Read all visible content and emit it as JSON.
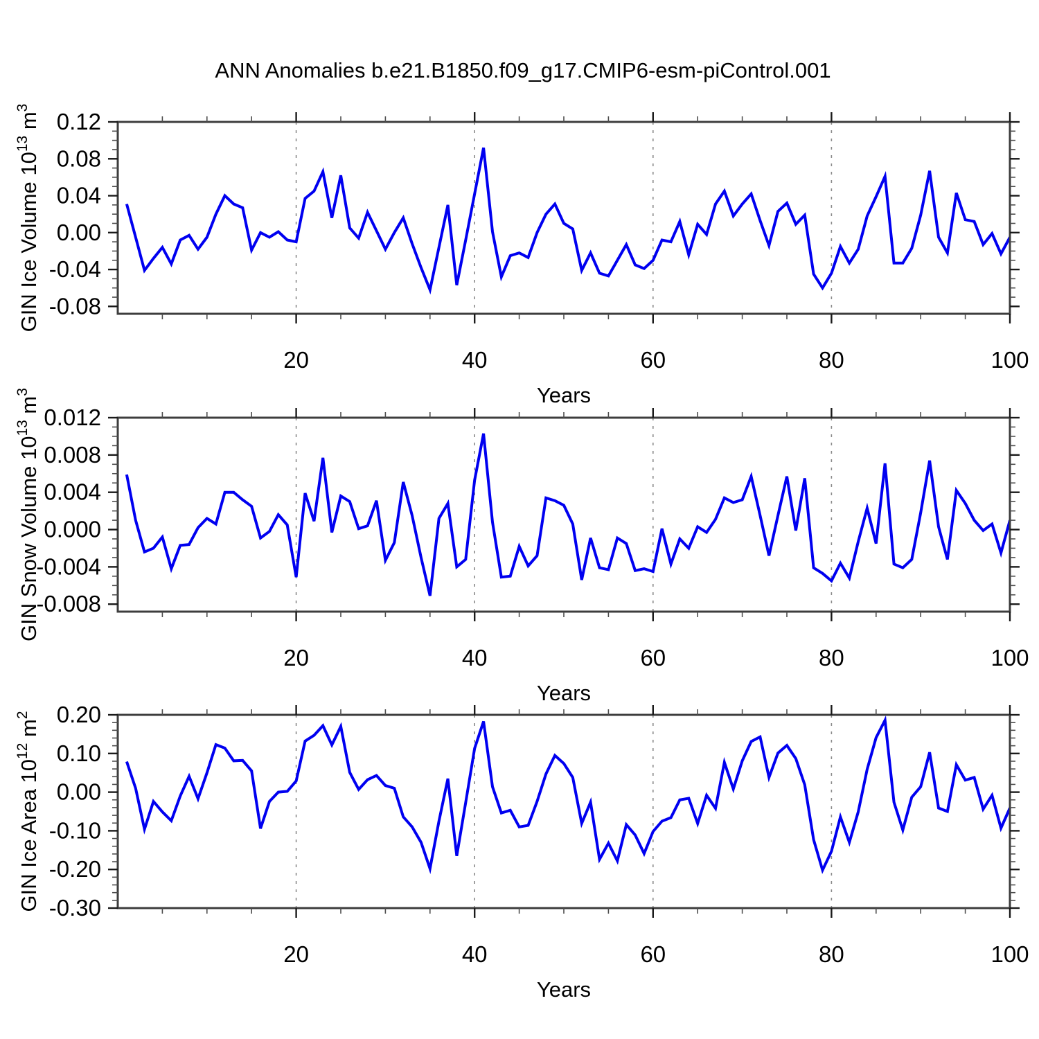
{
  "title": "ANN Anomalies b.e21.B1850.f09_g17.CMIP6-esm-piControl.001",
  "chart_data": [
    {
      "type": "line",
      "name": "gin-ice-volume",
      "ylabel_parts": [
        [
          "GIN Ice Volume 10",
          false
        ],
        [
          "13",
          true
        ],
        [
          " m",
          false
        ],
        [
          "3",
          true
        ]
      ],
      "xlabel": "Years",
      "x_axis_min": 0,
      "x_axis_max": 100,
      "x_data_start": 1,
      "xticks": [
        20,
        40,
        60,
        80,
        100
      ],
      "xtick_labels": [
        "20",
        "40",
        "60",
        "80",
        "100"
      ],
      "x_minor_step": 5,
      "gridlines_x": [
        20,
        40,
        60,
        80
      ],
      "ymin": -0.088,
      "ymax": 0.12,
      "yticks": [
        {
          "v": 0.12,
          "label": "0.12"
        },
        {
          "v": 0.08,
          "label": "0.08"
        },
        {
          "v": 0.04,
          "label": "0.04"
        },
        {
          "v": 0.0,
          "label": "0.00"
        },
        {
          "v": -0.04,
          "label": "-0.04"
        },
        {
          "v": -0.08,
          "label": "-0.08"
        }
      ],
      "y_minor_step": 0.01,
      "line_color": "#0000f0",
      "grid_color": "#8a8a8a",
      "values": [
        0.031,
        -0.005,
        -0.041,
        -0.028,
        -0.016,
        -0.034,
        -0.008,
        -0.003,
        -0.018,
        -0.005,
        0.02,
        0.04,
        0.031,
        0.027,
        -0.019,
        0.0,
        -0.005,
        0.001,
        -0.008,
        -0.01,
        0.037,
        0.045,
        0.066,
        0.016,
        0.062,
        0.005,
        -0.006,
        0.022,
        0.002,
        -0.018,
        0.0,
        0.016,
        -0.012,
        -0.038,
        -0.062,
        -0.016,
        0.03,
        -0.057,
        -0.008,
        0.042,
        0.092,
        0.001,
        -0.048,
        -0.025,
        -0.022,
        -0.027,
        0.0,
        0.02,
        0.031,
        0.01,
        0.004,
        -0.041,
        -0.022,
        -0.044,
        -0.047,
        -0.03,
        -0.013,
        -0.035,
        -0.039,
        -0.03,
        -0.008,
        -0.01,
        0.012,
        -0.024,
        0.009,
        -0.002,
        0.031,
        0.045,
        0.018,
        0.031,
        0.042,
        0.013,
        -0.014,
        0.023,
        0.032,
        0.009,
        0.019,
        -0.045,
        -0.06,
        -0.044,
        -0.015,
        -0.033,
        -0.018,
        0.018,
        0.039,
        0.061,
        -0.033,
        -0.033,
        -0.017,
        0.019,
        0.067,
        -0.005,
        -0.022,
        0.043,
        0.014,
        0.012,
        -0.013,
        -0.001,
        -0.023,
        -0.005
      ]
    },
    {
      "type": "line",
      "name": "gin-snow-volume",
      "ylabel_parts": [
        [
          "GIN Snow Volume 10",
          false
        ],
        [
          "13",
          true
        ],
        [
          " m",
          false
        ],
        [
          "3",
          true
        ]
      ],
      "xlabel": "Years",
      "x_axis_min": 0,
      "x_axis_max": 100,
      "x_data_start": 1,
      "xticks": [
        20,
        40,
        60,
        80,
        100
      ],
      "xtick_labels": [
        "20",
        "40",
        "60",
        "80",
        "100"
      ],
      "x_minor_step": 5,
      "gridlines_x": [
        20,
        40,
        60,
        80
      ],
      "ymin": -0.0088,
      "ymax": 0.012,
      "yticks": [
        {
          "v": 0.012,
          "label": "0.012"
        },
        {
          "v": 0.008,
          "label": "0.008"
        },
        {
          "v": 0.004,
          "label": "0.004"
        },
        {
          "v": 0.0,
          "label": "0.000"
        },
        {
          "v": -0.004,
          "label": "-0.004"
        },
        {
          "v": -0.008,
          "label": "-0.008"
        }
      ],
      "y_minor_step": 0.001,
      "line_color": "#0000f0",
      "grid_color": "#8a8a8a",
      "values": [
        0.0059,
        0.001,
        -0.0024,
        -0.002,
        -0.0008,
        -0.0042,
        -0.0017,
        -0.0016,
        0.0002,
        0.0012,
        0.0006,
        0.004,
        0.004,
        0.0032,
        0.0025,
        -0.0009,
        -0.0002,
        0.0016,
        0.0005,
        -0.0051,
        0.0039,
        0.0009,
        0.0077,
        -0.0003,
        0.0036,
        0.003,
        0.0001,
        0.0004,
        0.0031,
        -0.0033,
        -0.0014,
        0.0051,
        0.0015,
        -0.003,
        -0.0071,
        0.0012,
        0.0028,
        -0.004,
        -0.0032,
        0.0053,
        0.0103,
        0.0008,
        -0.0051,
        -0.005,
        -0.0018,
        -0.0039,
        -0.0028,
        0.0034,
        0.0031,
        0.0026,
        0.0006,
        -0.0054,
        -0.0009,
        -0.0041,
        -0.0043,
        -0.0009,
        -0.0015,
        -0.0044,
        -0.0042,
        -0.0045,
        0.0001,
        -0.0037,
        -0.001,
        -0.002,
        0.0003,
        -0.0003,
        0.0011,
        0.0034,
        0.0029,
        0.0032,
        0.0057,
        0.0015,
        -0.0028,
        0.0015,
        0.0057,
        -0.0001,
        0.0055,
        -0.0041,
        -0.0047,
        -0.0055,
        -0.0036,
        -0.0052,
        -0.0013,
        0.0023,
        -0.0015,
        0.0071,
        -0.0037,
        -0.0041,
        -0.0032,
        0.0018,
        0.0074,
        0.0003,
        -0.0032,
        0.0042,
        0.0028,
        0.001,
        -0.0001,
        0.0006,
        -0.0025,
        0.001
      ]
    },
    {
      "type": "line",
      "name": "gin-ice-area",
      "ylabel_parts": [
        [
          "GIN Ice Area 10",
          false
        ],
        [
          "12",
          true
        ],
        [
          " m",
          false
        ],
        [
          "2",
          true
        ]
      ],
      "xlabel": "Years",
      "x_axis_min": 0,
      "x_axis_max": 100,
      "x_data_start": 1,
      "xticks": [
        20,
        40,
        60,
        80,
        100
      ],
      "xtick_labels": [
        "20",
        "40",
        "60",
        "80",
        "100"
      ],
      "x_minor_step": 5,
      "gridlines_x": [
        20,
        40,
        60,
        80
      ],
      "ymin": -0.3,
      "ymax": 0.2,
      "yticks": [
        {
          "v": 0.2,
          "label": "0.20"
        },
        {
          "v": 0.1,
          "label": "0.10"
        },
        {
          "v": 0.0,
          "label": "0.00"
        },
        {
          "v": -0.1,
          "label": "-0.10"
        },
        {
          "v": -0.2,
          "label": "-0.20"
        },
        {
          "v": -0.3,
          "label": "-0.30"
        }
      ],
      "y_minor_step": 0.02,
      "line_color": "#0000f0",
      "grid_color": "#8a8a8a",
      "values": [
        0.079,
        0.01,
        -0.096,
        -0.024,
        -0.051,
        -0.074,
        -0.01,
        0.041,
        -0.017,
        0.05,
        0.123,
        0.114,
        0.081,
        0.082,
        0.055,
        -0.094,
        -0.024,
        0.0,
        0.002,
        0.029,
        0.132,
        0.147,
        0.172,
        0.122,
        0.17,
        0.051,
        0.007,
        0.032,
        0.043,
        0.017,
        0.01,
        -0.064,
        -0.09,
        -0.13,
        -0.198,
        -0.075,
        0.035,
        -0.165,
        -0.027,
        0.113,
        0.183,
        0.014,
        -0.054,
        -0.047,
        -0.09,
        -0.086,
        -0.024,
        0.047,
        0.095,
        0.074,
        0.038,
        -0.081,
        -0.026,
        -0.174,
        -0.132,
        -0.178,
        -0.084,
        -0.111,
        -0.159,
        -0.102,
        -0.075,
        -0.066,
        -0.02,
        -0.016,
        -0.081,
        -0.008,
        -0.042,
        0.077,
        0.008,
        0.081,
        0.131,
        0.143,
        0.038,
        0.101,
        0.121,
        0.087,
        0.019,
        -0.123,
        -0.202,
        -0.153,
        -0.064,
        -0.13,
        -0.051,
        0.059,
        0.141,
        0.186,
        -0.026,
        -0.098,
        -0.013,
        0.014,
        0.103,
        -0.041,
        -0.05,
        0.071,
        0.031,
        0.038,
        -0.044,
        -0.008,
        -0.093,
        -0.041
      ]
    }
  ]
}
